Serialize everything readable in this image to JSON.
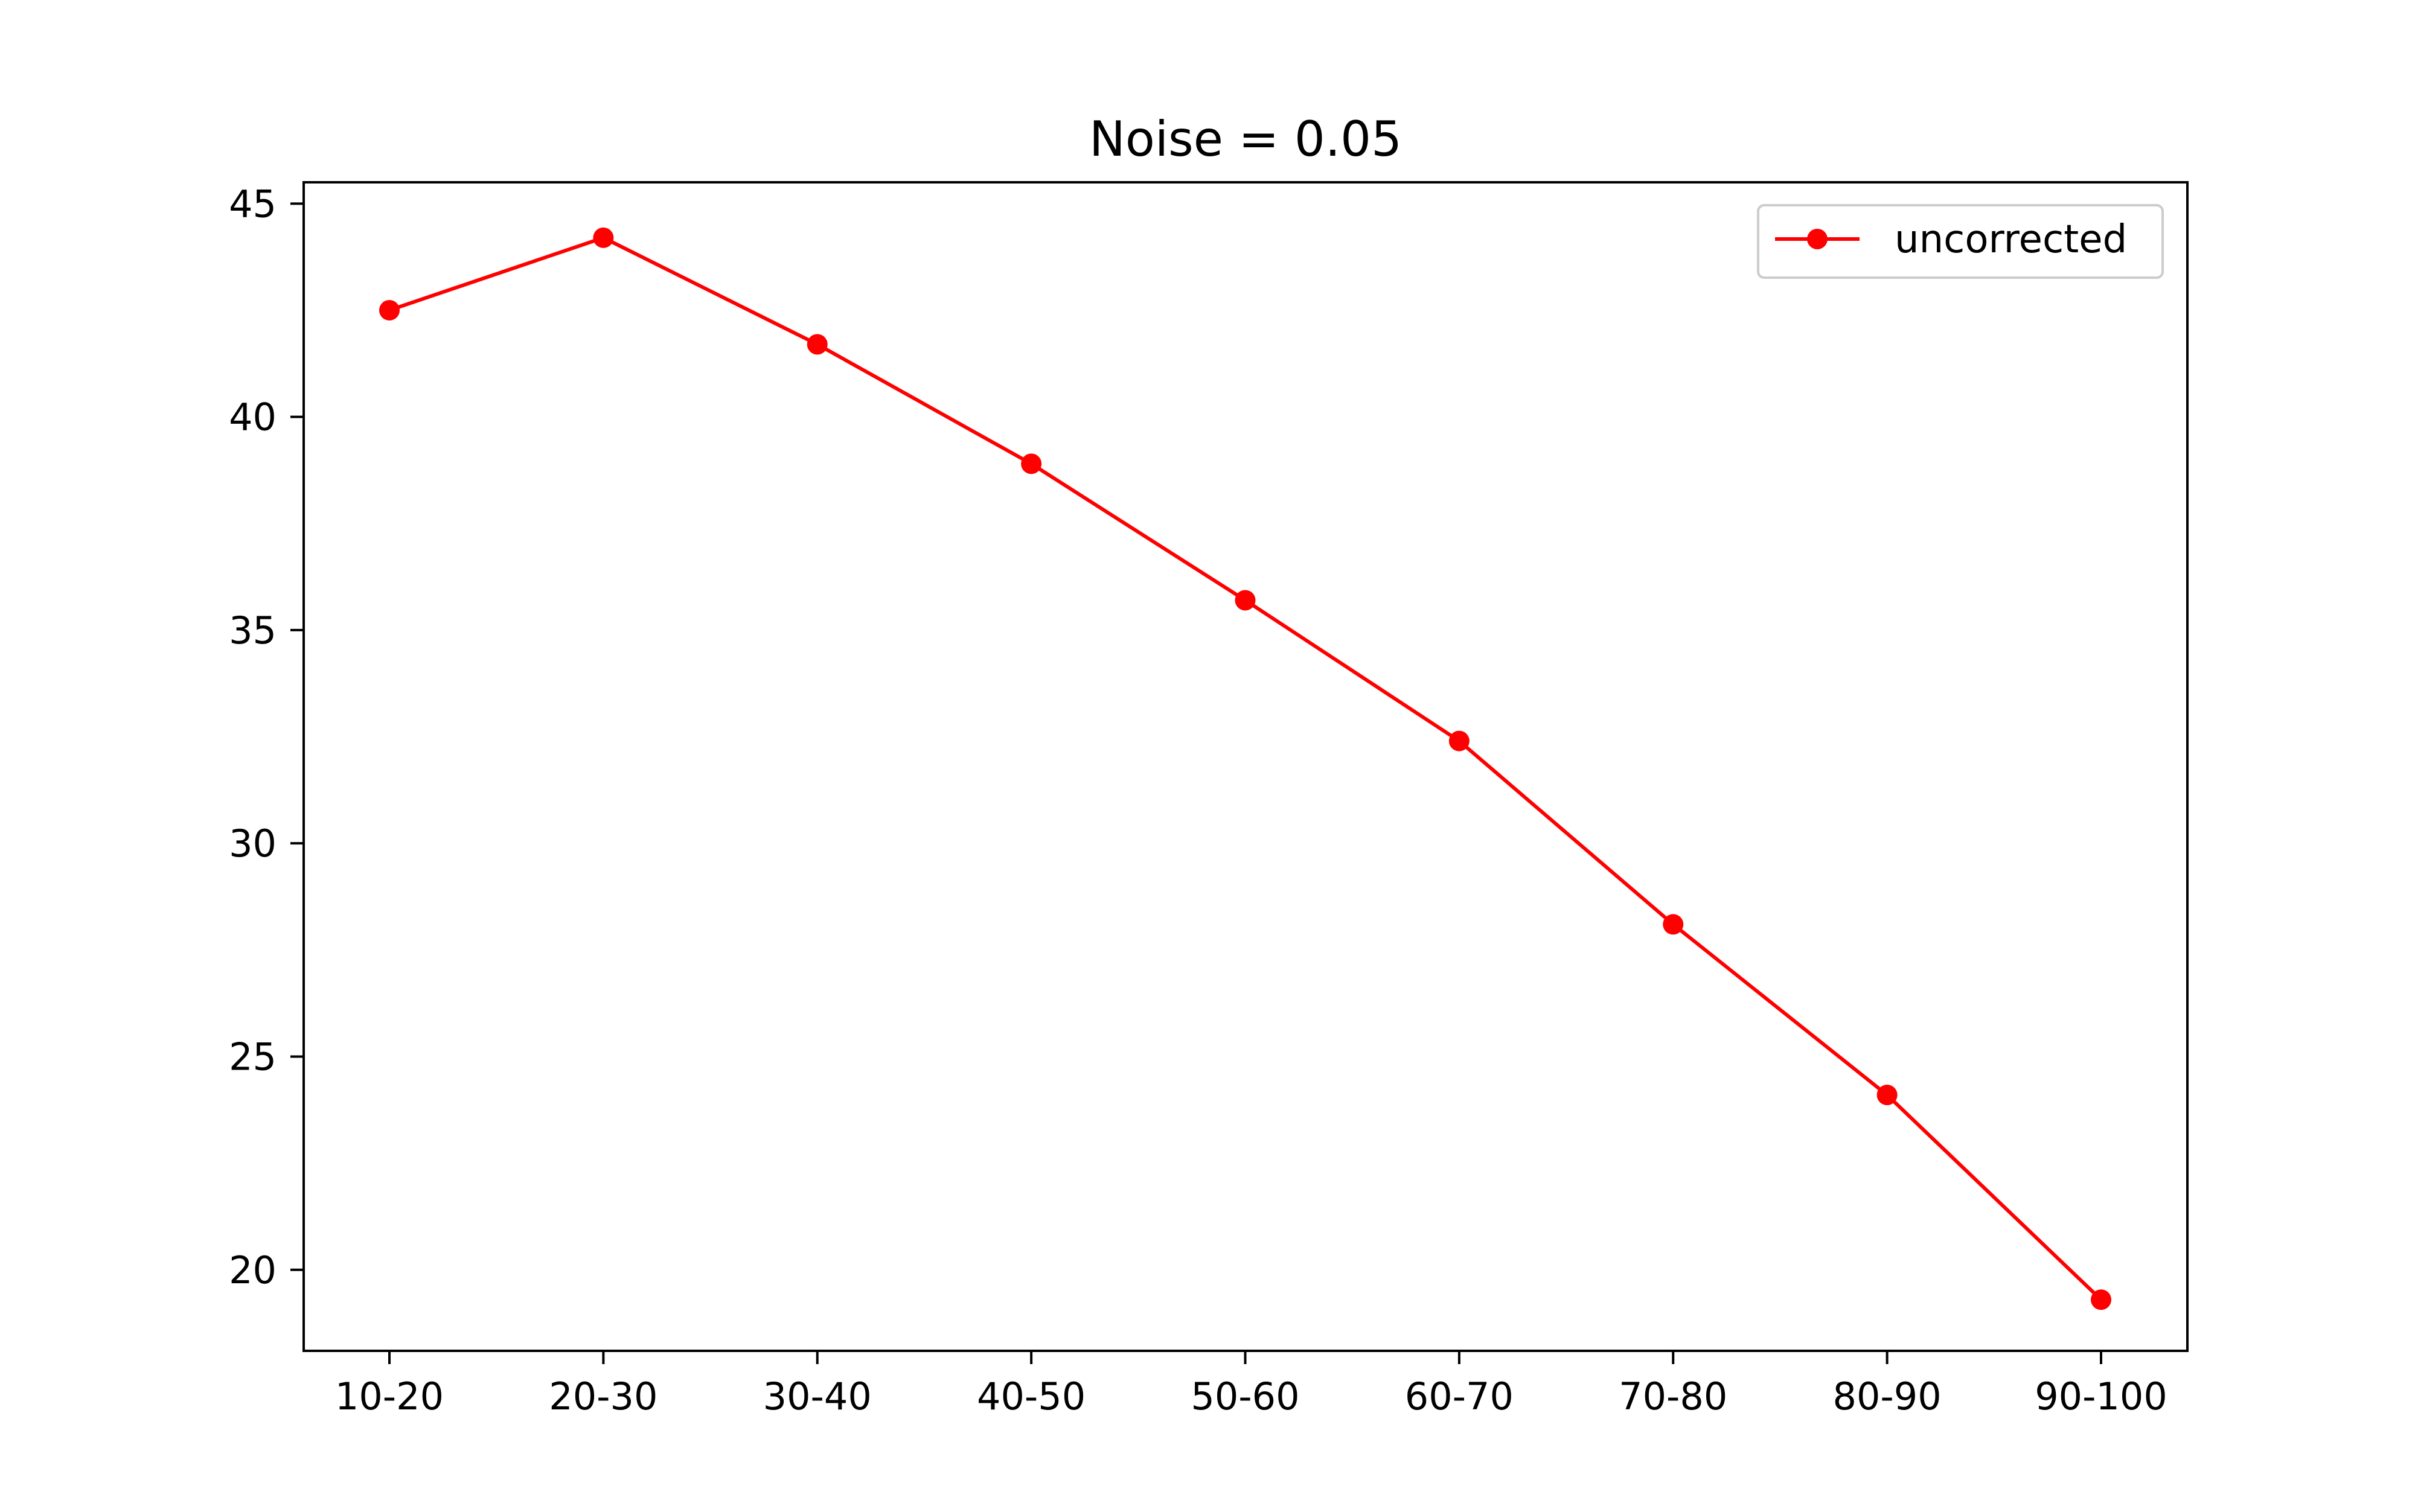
{
  "chart_data": {
    "type": "line",
    "title": "Noise = 0.05",
    "xlabel": "",
    "ylabel": "",
    "categories": [
      "10-20",
      "20-30",
      "30-40",
      "40-50",
      "50-60",
      "60-70",
      "70-80",
      "80-90",
      "90-100"
    ],
    "series": [
      {
        "name": "uncorrected",
        "values": [
          42.5,
          44.2,
          41.7,
          38.9,
          35.7,
          32.4,
          28.1,
          24.1,
          19.3
        ],
        "color": "#ff0000",
        "marker": "circle"
      }
    ],
    "ylim": [
      18.1,
      45.5
    ],
    "yticks": [
      20,
      25,
      30,
      35,
      40,
      45
    ],
    "grid": false,
    "legend_position": "top-right"
  }
}
